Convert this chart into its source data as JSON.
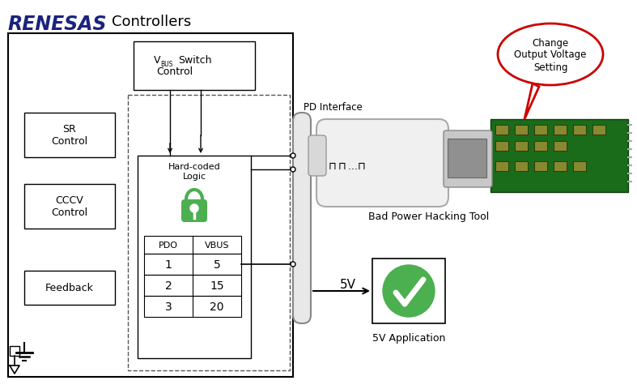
{
  "title": "Controllers",
  "renesas_color": "#1a237e",
  "background": "#ffffff",
  "box_color": "#000000",
  "dashed_color": "#555555",
  "green_color": "#4caf50",
  "red_color": "#cc0000",
  "sr_control_label": "SR\nControl",
  "cccv_control_label": "CCCV\nControl",
  "feedback_label": "Feedback",
  "hard_coded_label": "Hard-coded\nLogic",
  "pd_interface_label": "PD Interface",
  "bad_power_label": "Bad Power Hacking Tool",
  "fivev_label": "5V",
  "fivev_app_label": "5V Application",
  "callout_text": "Change\nOutput Voltage\nSetting",
  "table_rows": [
    [
      "1",
      "5"
    ],
    [
      "2",
      "15"
    ],
    [
      "3",
      "20"
    ]
  ]
}
